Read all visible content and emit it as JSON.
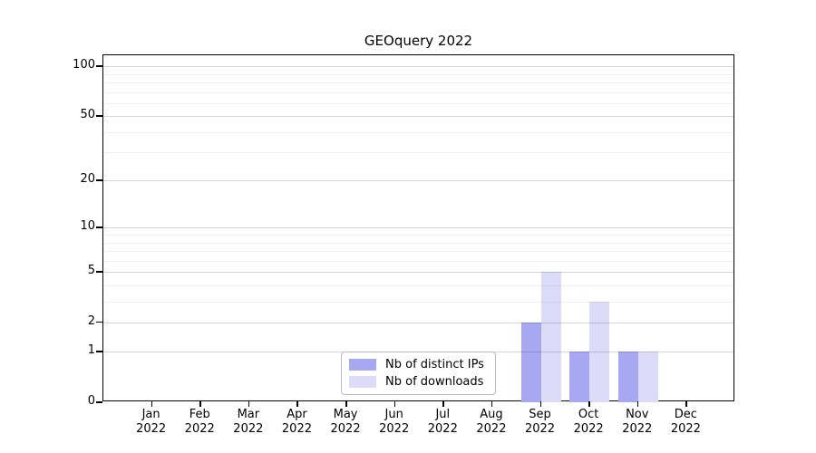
{
  "chart_data": {
    "type": "bar",
    "title": "GEOquery 2022",
    "categories": [
      "Jan",
      "Feb",
      "Mar",
      "Apr",
      "May",
      "Jun",
      "Jul",
      "Aug",
      "Sep",
      "Oct",
      "Nov",
      "Dec"
    ],
    "year": "2022",
    "series": [
      {
        "name": "Nb of distinct IPs",
        "color": "#a8a8f2",
        "values": [
          0,
          0,
          0,
          0,
          0,
          0,
          0,
          0,
          2,
          1,
          1,
          0
        ]
      },
      {
        "name": "Nb of downloads",
        "color": "#dcdcf8",
        "values": [
          0,
          0,
          0,
          0,
          0,
          0,
          0,
          0,
          5,
          3,
          1,
          0
        ]
      }
    ],
    "xlabel": "",
    "ylabel": "",
    "y_scale": "log1p",
    "y_major_ticks": [
      0,
      1,
      2,
      5,
      10,
      20,
      50,
      100
    ],
    "y_minor_gridlines": [
      3,
      4,
      6,
      7,
      8,
      9,
      30,
      40,
      60,
      70,
      80,
      90
    ],
    "ylim": [
      0,
      115
    ],
    "grid": true,
    "legend_position": "lower center"
  }
}
